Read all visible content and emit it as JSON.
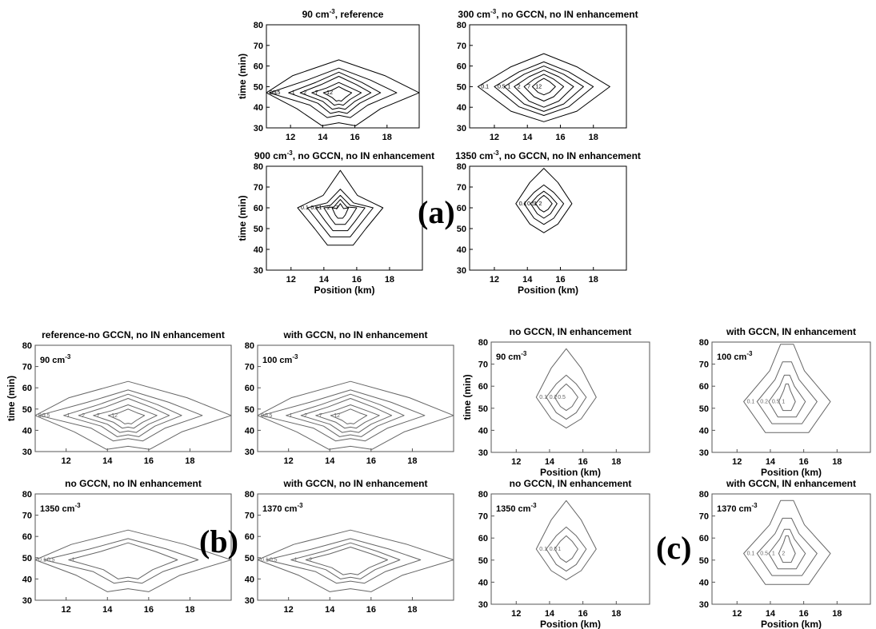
{
  "figure_labels": {
    "a": "(a)",
    "b": "(b)",
    "c": "(c)"
  },
  "colors": {
    "axis": "#000000",
    "contour_a": "#000000",
    "contour_bc": "#666666",
    "text": "#000000"
  },
  "chart_data": [
    {
      "group": "a",
      "type": "contour",
      "title": "90 cm",
      "title_sup": "-3",
      "title_rest": ", reference",
      "xlabel": "",
      "ylabel": "time (min)",
      "xlim": [
        10.5,
        20
      ],
      "ylim": [
        30,
        80
      ],
      "xticks": [
        12,
        14,
        16,
        18
      ],
      "yticks": [
        30,
        40,
        50,
        60,
        70,
        80
      ],
      "contour_levels": [
        0.1,
        0.5,
        1,
        2,
        7,
        12
      ]
    },
    {
      "group": "a",
      "type": "contour",
      "title": "300 cm",
      "title_sup": "-3",
      "title_rest": ", no GCCN, no IN enhancement",
      "xlabel": "",
      "ylabel": "",
      "xlim": [
        10.5,
        20
      ],
      "ylim": [
        30,
        80
      ],
      "xticks": [
        12,
        14,
        16,
        18
      ],
      "yticks": [
        30,
        40,
        50,
        60,
        70,
        80
      ],
      "contour_levels": [
        0.1,
        0.5,
        1,
        2,
        7,
        12
      ]
    },
    {
      "group": "a",
      "type": "contour",
      "title": "900 cm",
      "title_sup": "-3",
      "title_rest": ", no GCCN, no IN enhancement",
      "xlabel": "Position (km)",
      "ylabel": "time (min)",
      "xlim": [
        10.5,
        20
      ],
      "ylim": [
        30,
        80
      ],
      "xticks": [
        12,
        14,
        16,
        18
      ],
      "yticks": [
        30,
        40,
        50,
        60,
        70,
        80
      ],
      "contour_levels": [
        0.1,
        0.5,
        1,
        2,
        7
      ]
    },
    {
      "group": "a",
      "type": "contour",
      "title": "1350 cm",
      "title_sup": "-3",
      "title_rest": ", no GCCN, no IN enhancement",
      "xlabel": "Position (km)",
      "ylabel": "",
      "xlim": [
        10.5,
        20
      ],
      "ylim": [
        30,
        80
      ],
      "xticks": [
        12,
        14,
        16,
        18
      ],
      "yticks": [
        30,
        40,
        50,
        60,
        70,
        80
      ],
      "contour_levels": [
        0.1,
        0.5,
        1,
        2
      ]
    },
    {
      "group": "b",
      "type": "contour",
      "title": "reference-no GCCN, no IN enhancement",
      "title_sup": "",
      "title_rest": "",
      "inner_label": "90 cm",
      "inner_sup": "-3",
      "xlabel": "",
      "ylabel": "time (min)",
      "xlim": [
        10.5,
        20
      ],
      "ylim": [
        30,
        80
      ],
      "xticks": [
        12,
        14,
        16,
        18
      ],
      "yticks": [
        30,
        40,
        50,
        60,
        70,
        80
      ],
      "contour_levels": [
        0.1,
        0.5,
        1,
        2,
        7,
        12
      ]
    },
    {
      "group": "b",
      "type": "contour",
      "title": "with GCCN, no IN enhancement",
      "title_sup": "",
      "title_rest": "",
      "inner_label": "100 cm",
      "inner_sup": "-3",
      "xlabel": "",
      "ylabel": "",
      "xlim": [
        10.5,
        20
      ],
      "ylim": [
        30,
        80
      ],
      "xticks": [
        12,
        14,
        16,
        18
      ],
      "yticks": [
        30,
        40,
        50,
        60,
        70,
        80
      ],
      "contour_levels": [
        0.1,
        0.5,
        1,
        2,
        7,
        12
      ]
    },
    {
      "group": "b",
      "type": "contour",
      "title": "no GCCN, IN enhancement",
      "title_sup": "",
      "title_rest": "",
      "inner_label": "90 cm",
      "inner_sup": "-3",
      "xlabel": "Position (km)",
      "ylabel": "time (min)",
      "xlim": [
        10.5,
        20
      ],
      "ylim": [
        30,
        80
      ],
      "xticks": [
        12,
        14,
        16,
        18
      ],
      "yticks": [
        30,
        40,
        50,
        60,
        70,
        80
      ],
      "contour_levels": [
        0.1,
        0.2,
        0.5,
        1,
        2
      ]
    },
    {
      "group": "b",
      "type": "contour",
      "title": "with GCCN,  IN enhancement",
      "title_sup": "",
      "title_rest": "",
      "inner_label": "100 cm",
      "inner_sup": "-3",
      "xlabel": "Position (km)",
      "ylabel": "",
      "xlim": [
        10.5,
        20
      ],
      "ylim": [
        30,
        80
      ],
      "xticks": [
        12,
        14,
        16,
        18
      ],
      "yticks": [
        30,
        40,
        50,
        60,
        70,
        80
      ],
      "contour_levels": [
        0.1,
        0.2,
        0.5,
        1,
        2
      ]
    },
    {
      "group": "c",
      "type": "contour",
      "title": "no GCCN, no IN enhancement",
      "title_sup": "",
      "title_rest": "",
      "inner_label": "1350 cm",
      "inner_sup": "-3",
      "xlabel": "",
      "ylabel": "",
      "xlim": [
        10.5,
        20
      ],
      "ylim": [
        30,
        80
      ],
      "xticks": [
        12,
        14,
        16,
        18
      ],
      "yticks": [
        30,
        40,
        50,
        60,
        70,
        80
      ],
      "contour_levels": [
        0.1,
        0.5,
        1
      ]
    },
    {
      "group": "c",
      "type": "contour",
      "title": "with GCCN, no IN enhancement",
      "title_sup": "",
      "title_rest": "",
      "inner_label": "1370 cm",
      "inner_sup": "-3",
      "xlabel": "",
      "ylabel": "",
      "xlim": [
        10.5,
        20
      ],
      "ylim": [
        30,
        80
      ],
      "xticks": [
        12,
        14,
        16,
        18
      ],
      "yticks": [
        30,
        40,
        50,
        60,
        70,
        80
      ],
      "contour_levels": [
        0.1,
        0.5,
        1,
        2
      ]
    },
    {
      "group": "c",
      "type": "contour",
      "title": "no GCCN, IN enhancement",
      "title_sup": "",
      "title_rest": "",
      "inner_label": "1350 cm",
      "inner_sup": "-3",
      "xlabel": "Position (km)",
      "ylabel": "",
      "xlim": [
        10.5,
        20
      ],
      "ylim": [
        30,
        80
      ],
      "xticks": [
        12,
        14,
        16,
        18
      ],
      "yticks": [
        30,
        40,
        50,
        60,
        70,
        80
      ],
      "contour_levels": [
        0.1,
        0.5,
        1
      ]
    },
    {
      "group": "c",
      "type": "contour",
      "title": "with GCCN,  IN enhancement",
      "title_sup": "",
      "title_rest": "",
      "inner_label": "1370 cm",
      "inner_sup": "-3",
      "xlabel": "Position (km)",
      "ylabel": "",
      "xlim": [
        10.5,
        20
      ],
      "ylim": [
        30,
        80
      ],
      "xticks": [
        12,
        14,
        16,
        18
      ],
      "yticks": [
        30,
        40,
        50,
        60,
        70,
        80
      ],
      "contour_levels": [
        0.1,
        0.5,
        1,
        2
      ]
    }
  ]
}
